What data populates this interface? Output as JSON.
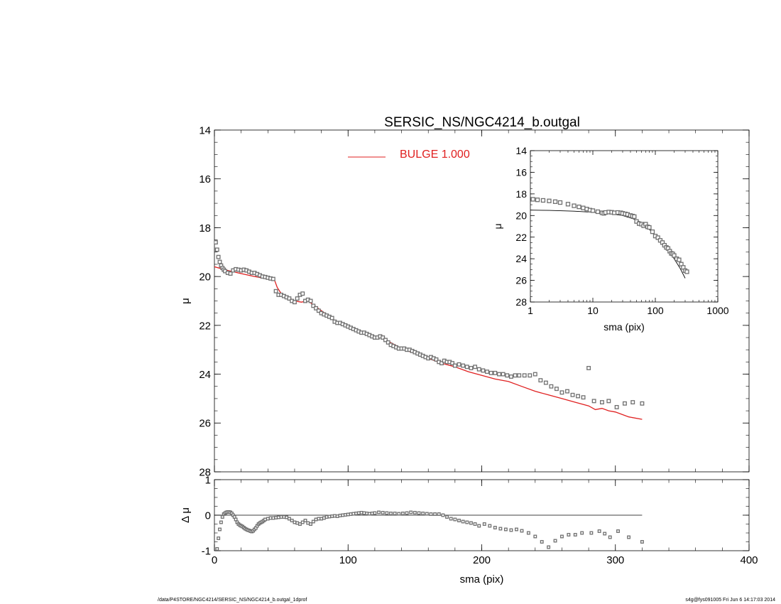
{
  "title": "SERSIC_NS/NGC4214_b.outgal",
  "footer": {
    "left": "/data/P4STORE/NGC4214/SERSIC_NS/NGC4214_b.outgal_1dprof",
    "right": "s4g@fys091005  Fri Jun  6 14:17:03 2014"
  },
  "colors": {
    "model": "#e02020",
    "points": "#707070",
    "axis": "#000000"
  },
  "chart_data": [
    {
      "id": "main",
      "type": "scatter",
      "xlabel": "sma (pix)",
      "ylabel": "μ",
      "xlim": [
        0,
        400
      ],
      "ylim": [
        28,
        14
      ],
      "xticks": [
        0,
        100,
        200,
        300,
        400
      ],
      "yticks": [
        14,
        16,
        18,
        20,
        22,
        24,
        26,
        28
      ],
      "legend": {
        "label": "BULGE  1.000",
        "placement": "top-center"
      },
      "series": [
        {
          "name": "BULGE  1.000",
          "type": "line",
          "x": [
            0,
            10,
            20,
            30,
            40,
            45,
            47,
            50,
            55,
            60,
            65,
            70,
            75,
            80,
            90,
            100,
            110,
            120,
            125,
            130,
            140,
            150,
            160,
            170,
            180,
            190,
            200,
            210,
            220,
            230,
            240,
            250,
            260,
            270,
            280,
            285,
            290,
            295,
            300,
            310,
            320
          ],
          "y": [
            19.6,
            19.75,
            19.88,
            20.0,
            20.1,
            20.15,
            20.45,
            20.7,
            20.85,
            21.0,
            21.05,
            21.0,
            21.2,
            21.4,
            21.8,
            22.05,
            22.25,
            22.5,
            22.4,
            22.65,
            22.95,
            23.15,
            23.35,
            23.55,
            23.7,
            23.9,
            24.05,
            24.2,
            24.3,
            24.5,
            24.7,
            24.85,
            25.0,
            25.15,
            25.3,
            25.45,
            25.4,
            25.5,
            25.55,
            25.75,
            25.85
          ]
        },
        {
          "name": "",
          "type": "scatter",
          "x": [
            1,
            2,
            3,
            4,
            5,
            6,
            7,
            8,
            10,
            12,
            14,
            16,
            18,
            20,
            22,
            24,
            26,
            28,
            30,
            32,
            34,
            36,
            38,
            40,
            42,
            44,
            46,
            48,
            50,
            52,
            54,
            56,
            58,
            60,
            62,
            64,
            66,
            68,
            70,
            72,
            74,
            76,
            78,
            80,
            82,
            84,
            86,
            88,
            90,
            92,
            94,
            96,
            98,
            100,
            102,
            104,
            106,
            108,
            110,
            112,
            114,
            116,
            118,
            120,
            122,
            124,
            126,
            128,
            130,
            132,
            134,
            136,
            138,
            140,
            142,
            144,
            146,
            148,
            150,
            152,
            154,
            156,
            158,
            160,
            162,
            164,
            166,
            168,
            170,
            172,
            174,
            176,
            178,
            180,
            183,
            186,
            189,
            192,
            195,
            198,
            201,
            204,
            207,
            210,
            213,
            216,
            219,
            222,
            225,
            228,
            232,
            236,
            240,
            244,
            248,
            252,
            256,
            260,
            264,
            268,
            272,
            276,
            280,
            284,
            290,
            295,
            301,
            307,
            313,
            320
          ],
          "y": [
            18.6,
            18.9,
            19.2,
            19.4,
            19.55,
            19.65,
            19.72,
            19.78,
            19.85,
            19.88,
            19.75,
            19.7,
            19.72,
            19.75,
            19.72,
            19.75,
            19.8,
            19.85,
            19.85,
            19.9,
            19.95,
            20.0,
            20.02,
            20.05,
            20.08,
            20.1,
            20.6,
            20.75,
            20.75,
            20.8,
            20.85,
            20.9,
            21.0,
            21.05,
            20.9,
            20.75,
            20.7,
            21.0,
            20.95,
            21.0,
            21.2,
            21.3,
            21.4,
            21.5,
            21.55,
            21.6,
            21.65,
            21.7,
            21.85,
            21.9,
            21.9,
            21.95,
            22.0,
            22.05,
            22.1,
            22.15,
            22.2,
            22.25,
            22.3,
            22.3,
            22.35,
            22.4,
            22.45,
            22.5,
            22.5,
            22.45,
            22.5,
            22.6,
            22.7,
            22.8,
            22.85,
            22.9,
            22.95,
            22.95,
            22.95,
            23.0,
            23.0,
            23.05,
            23.1,
            23.15,
            23.2,
            23.25,
            23.3,
            23.35,
            23.3,
            23.35,
            23.4,
            23.5,
            23.55,
            23.45,
            23.5,
            23.5,
            23.55,
            23.65,
            23.6,
            23.65,
            23.7,
            23.75,
            23.7,
            23.8,
            23.85,
            23.9,
            23.95,
            23.95,
            24.0,
            24.0,
            24.05,
            24.1,
            24.05,
            24.05,
            24.05,
            24.05,
            24.0,
            24.25,
            24.35,
            24.5,
            24.6,
            24.75,
            24.7,
            24.85,
            24.9,
            24.95,
            23.75,
            25.1,
            25.15,
            25.1,
            25.35,
            25.2,
            25.15,
            25.2
          ]
        }
      ]
    },
    {
      "id": "inset",
      "type": "scatter",
      "xscale": "log",
      "xlabel": "sma (pix)",
      "ylabel": "μ",
      "xlim": [
        1,
        1000
      ],
      "ylim": [
        28,
        14
      ],
      "xticks": [
        1,
        10,
        100,
        1000
      ],
      "yticks": [
        14,
        16,
        18,
        20,
        22,
        24,
        26,
        28
      ],
      "series": [
        {
          "name": "",
          "type": "line",
          "x": [
            1,
            2,
            5,
            10,
            20,
            30,
            50,
            70,
            100,
            150,
            200,
            250,
            300
          ],
          "y": [
            19.5,
            19.53,
            19.6,
            19.7,
            19.85,
            20.0,
            20.4,
            20.9,
            21.9,
            23.0,
            24.0,
            24.9,
            25.8
          ]
        },
        {
          "name": "",
          "type": "scatter",
          "x": [
            1.1,
            1.3,
            1.6,
            2,
            2.5,
            3,
            4,
            5,
            6,
            7,
            8,
            9,
            10,
            12,
            14,
            15,
            16,
            18,
            20,
            22,
            25,
            28,
            30,
            33,
            36,
            40,
            43,
            46,
            50,
            55,
            60,
            65,
            70,
            75,
            80,
            90,
            100,
            110,
            120,
            130,
            140,
            150,
            160,
            170,
            180,
            190,
            200,
            220,
            240,
            260,
            280,
            300,
            320
          ],
          "y": [
            18.5,
            18.55,
            18.6,
            18.65,
            18.72,
            18.8,
            18.95,
            19.1,
            19.2,
            19.3,
            19.4,
            19.5,
            19.55,
            19.65,
            19.75,
            19.8,
            19.72,
            19.68,
            19.7,
            19.75,
            19.72,
            19.75,
            19.8,
            19.85,
            19.9,
            20.0,
            20.05,
            20.1,
            20.55,
            20.75,
            20.8,
            20.95,
            20.8,
            21.05,
            21.1,
            21.5,
            21.9,
            22.05,
            22.3,
            22.5,
            22.75,
            22.95,
            23.05,
            23.3,
            23.5,
            23.55,
            23.7,
            24.0,
            24.1,
            24.5,
            24.8,
            25.1,
            25.2
          ]
        }
      ]
    },
    {
      "id": "residual",
      "type": "scatter",
      "xlabel": "sma (pix)",
      "ylabel": "Δ μ",
      "xlim": [
        0,
        400
      ],
      "ylim": [
        -1,
        1
      ],
      "xticks": [
        0,
        100,
        200,
        300,
        400
      ],
      "yticks": [
        -1,
        0,
        1
      ],
      "zero_line_xmax": 320,
      "series": [
        {
          "name": "",
          "type": "scatter",
          "x": [
            2,
            3,
            4,
            5,
            6,
            7,
            8,
            9,
            10,
            11,
            12,
            13,
            14,
            15,
            16,
            17,
            18,
            19,
            20,
            21,
            22,
            23,
            24,
            25,
            26,
            27,
            28,
            29,
            30,
            31,
            32,
            33,
            34,
            35,
            36,
            37,
            38,
            40,
            42,
            44,
            46,
            48,
            50,
            52,
            54,
            56,
            58,
            60,
            62,
            64,
            66,
            68,
            70,
            72,
            74,
            76,
            78,
            80,
            82,
            84,
            86,
            88,
            90,
            92,
            94,
            96,
            98,
            100,
            102,
            104,
            106,
            108,
            110,
            112,
            114,
            116,
            118,
            120,
            123,
            126,
            129,
            132,
            135,
            138,
            141,
            144,
            147,
            150,
            153,
            156,
            159,
            162,
            165,
            168,
            171,
            174,
            177,
            180,
            183,
            186,
            189,
            192,
            195,
            198,
            202,
            206,
            210,
            214,
            218,
            222,
            226,
            230,
            235,
            240,
            245,
            250,
            255,
            260,
            265,
            270,
            275,
            282,
            288,
            292,
            296,
            302,
            310,
            320
          ],
          "y": [
            -0.95,
            -0.65,
            -0.4,
            -0.2,
            -0.05,
            0.03,
            0.06,
            0.08,
            0.09,
            0.09,
            0.08,
            0.05,
            0.0,
            -0.05,
            -0.12,
            -0.2,
            -0.25,
            -0.28,
            -0.3,
            -0.32,
            -0.35,
            -0.38,
            -0.4,
            -0.42,
            -0.43,
            -0.45,
            -0.46,
            -0.44,
            -0.4,
            -0.36,
            -0.3,
            -0.25,
            -0.22,
            -0.2,
            -0.18,
            -0.15,
            -0.12,
            -0.1,
            -0.08,
            -0.08,
            -0.07,
            -0.06,
            -0.05,
            -0.05,
            -0.06,
            -0.1,
            -0.15,
            -0.2,
            -0.22,
            -0.25,
            -0.2,
            -0.15,
            -0.22,
            -0.25,
            -0.18,
            -0.12,
            -0.1,
            -0.1,
            -0.08,
            -0.05,
            -0.04,
            -0.03,
            -0.02,
            -0.03,
            -0.01,
            0.0,
            0.01,
            0.02,
            0.03,
            0.04,
            0.05,
            0.06,
            0.07,
            0.06,
            0.05,
            0.04,
            0.05,
            0.06,
            0.08,
            0.07,
            0.06,
            0.05,
            0.05,
            0.04,
            0.05,
            0.06,
            0.08,
            0.07,
            0.06,
            0.05,
            0.04,
            0.03,
            0.03,
            0.03,
            0.0,
            -0.05,
            -0.1,
            -0.12,
            -0.15,
            -0.18,
            -0.2,
            -0.22,
            -0.25,
            -0.3,
            -0.25,
            -0.3,
            -0.35,
            -0.38,
            -0.4,
            -0.42,
            -0.4,
            -0.44,
            -0.5,
            -0.6,
            -0.75,
            -0.9,
            -0.72,
            -0.6,
            -0.55,
            -0.55,
            -0.5,
            -0.5,
            -0.45,
            -0.52,
            -0.62,
            -0.45,
            -0.62,
            -0.75
          ]
        }
      ]
    }
  ]
}
